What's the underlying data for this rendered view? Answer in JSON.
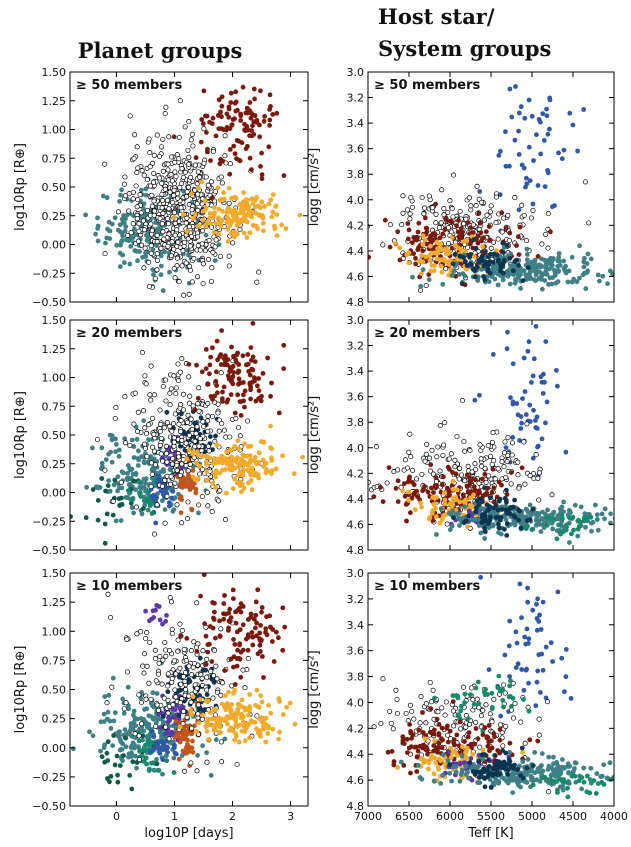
{
  "titles": {
    "left": "Planet groups",
    "right_line1": "Host star/",
    "right_line2": "System groups"
  },
  "colors": {
    "teal": "#3f7f86",
    "dark_teal": "#0e5a4a",
    "green": "#138a6a",
    "navy": "#0b3550",
    "purple": "#5b3aa6",
    "blue": "#2f58a8",
    "orange": "#c4541a",
    "yellow": "#f2aa2a",
    "maroon": "#7a1a0c",
    "hollow": "#ffffff"
  },
  "chart_data": [
    {
      "type": "scatter",
      "id": "rp-50",
      "column": "left",
      "panel_label": "≥ 50 members",
      "xlabel": "log10P [days]",
      "ylabel": "log10Rp [R⊕]",
      "xlim": [
        -0.8,
        3.3
      ],
      "ylim": [
        -0.5,
        1.5
      ],
      "xticks": [
        "0",
        "1",
        "2",
        "3"
      ],
      "yticks": [
        "−0.50",
        "−0.25",
        "0.00",
        "0.25",
        "0.50",
        "0.75",
        "1.00",
        "1.25",
        "1.50"
      ],
      "show_xticklabels": false,
      "groups": [
        {
          "name": "teal",
          "color": "teal",
          "n": 230,
          "cx": 0.6,
          "cy": 0.15,
          "sx": 0.45,
          "sy": 0.18
        },
        {
          "name": "unassigned",
          "color": "hollow",
          "n": 520,
          "cx": 1.1,
          "cy": 0.3,
          "sx": 0.45,
          "sy": 0.3
        },
        {
          "name": "maroon",
          "color": "maroon",
          "n": 110,
          "cx": 2.1,
          "cy": 1.0,
          "sx": 0.35,
          "sy": 0.2
        },
        {
          "name": "yellow",
          "color": "yellow",
          "n": 150,
          "cx": 2.1,
          "cy": 0.25,
          "sx": 0.4,
          "sy": 0.1
        }
      ]
    },
    {
      "type": "scatter",
      "id": "logg-50",
      "column": "right",
      "panel_label": "≥ 50 members",
      "xlabel": "Teff [K]",
      "ylabel": "logg [cm/s²]",
      "xlim": [
        7000,
        4000
      ],
      "ylim": [
        4.8,
        3.0
      ],
      "xticks": [
        "7000",
        "6500",
        "6000",
        "5500",
        "5000",
        "4500",
        "4000"
      ],
      "yticks": [
        "3.0",
        "3.2",
        "3.4",
        "3.6",
        "3.8",
        "4.0",
        "4.2",
        "4.4",
        "4.6",
        "4.8"
      ],
      "show_xticklabels": false,
      "groups": [
        {
          "name": "blue",
          "color": "blue",
          "n": 55,
          "cx": 5000,
          "cy": 3.6,
          "sx": 250,
          "sy": 0.3
        },
        {
          "name": "unassigned",
          "color": "hollow",
          "n": 230,
          "cx": 5800,
          "cy": 4.25,
          "sx": 450,
          "sy": 0.17
        },
        {
          "name": "maroon",
          "color": "maroon",
          "n": 140,
          "cx": 6000,
          "cy": 4.35,
          "sx": 400,
          "sy": 0.1
        },
        {
          "name": "yellow",
          "color": "yellow",
          "n": 80,
          "cx": 5950,
          "cy": 4.45,
          "sx": 280,
          "sy": 0.08
        },
        {
          "name": "teal",
          "color": "teal",
          "n": 220,
          "cx": 5000,
          "cy": 4.55,
          "sx": 500,
          "sy": 0.06
        },
        {
          "name": "navy",
          "color": "navy",
          "n": 60,
          "cx": 5500,
          "cy": 4.5,
          "sx": 200,
          "sy": 0.07
        }
      ]
    },
    {
      "type": "scatter",
      "id": "rp-20",
      "column": "left",
      "panel_label": "≥ 20 members",
      "xlabel": "log10P [days]",
      "ylabel": "log10Rp [R⊕]",
      "xlim": [
        -0.8,
        3.3
      ],
      "ylim": [
        -0.5,
        1.5
      ],
      "xticks": [
        "0",
        "1",
        "2",
        "3"
      ],
      "yticks": [
        "−0.50",
        "−0.25",
        "0.00",
        "0.25",
        "0.50",
        "0.75",
        "1.00",
        "1.25",
        "1.50"
      ],
      "show_xticklabels": false,
      "groups": [
        {
          "name": "teal",
          "color": "teal",
          "n": 220,
          "cx": 0.55,
          "cy": 0.15,
          "sx": 0.45,
          "sy": 0.18
        },
        {
          "name": "dark_teal",
          "color": "dark_teal",
          "n": 25,
          "cx": 0.0,
          "cy": -0.1,
          "sx": 0.3,
          "sy": 0.15
        },
        {
          "name": "green",
          "color": "green",
          "n": 20,
          "cx": 0.55,
          "cy": -0.05,
          "sx": 0.15,
          "sy": 0.08
        },
        {
          "name": "blue",
          "color": "blue",
          "n": 30,
          "cx": 0.8,
          "cy": 0.0,
          "sx": 0.12,
          "sy": 0.08
        },
        {
          "name": "purple",
          "color": "purple",
          "n": 40,
          "cx": 1.0,
          "cy": 0.32,
          "sx": 0.1,
          "sy": 0.08
        },
        {
          "name": "orange",
          "color": "orange",
          "n": 50,
          "cx": 1.2,
          "cy": 0.12,
          "sx": 0.1,
          "sy": 0.12
        },
        {
          "name": "navy",
          "color": "navy",
          "n": 60,
          "cx": 1.3,
          "cy": 0.5,
          "sx": 0.2,
          "sy": 0.1
        },
        {
          "name": "unassigned",
          "color": "hollow",
          "n": 280,
          "cx": 1.1,
          "cy": 0.45,
          "sx": 0.5,
          "sy": 0.3
        },
        {
          "name": "maroon",
          "color": "maroon",
          "n": 110,
          "cx": 2.1,
          "cy": 1.0,
          "sx": 0.35,
          "sy": 0.2
        },
        {
          "name": "yellow",
          "color": "yellow",
          "n": 140,
          "cx": 2.1,
          "cy": 0.25,
          "sx": 0.4,
          "sy": 0.1
        }
      ]
    },
    {
      "type": "scatter",
      "id": "logg-20",
      "column": "right",
      "panel_label": "≥ 20 members",
      "xlabel": "Teff [K]",
      "ylabel": "logg [cm/s²]",
      "xlim": [
        7000,
        4000
      ],
      "ylim": [
        4.8,
        3.0
      ],
      "xticks": [
        "7000",
        "6500",
        "6000",
        "5500",
        "5000",
        "4500",
        "4000"
      ],
      "yticks": [
        "3.0",
        "3.2",
        "3.4",
        "3.6",
        "3.8",
        "4.0",
        "4.2",
        "4.4",
        "4.6",
        "4.8"
      ],
      "show_xticklabels": false,
      "groups": [
        {
          "name": "blue",
          "color": "blue",
          "n": 55,
          "cx": 5000,
          "cy": 3.6,
          "sx": 250,
          "sy": 0.3
        },
        {
          "name": "unassigned",
          "color": "hollow",
          "n": 200,
          "cx": 5800,
          "cy": 4.2,
          "sx": 450,
          "sy": 0.17
        },
        {
          "name": "maroon",
          "color": "maroon",
          "n": 130,
          "cx": 6000,
          "cy": 4.35,
          "sx": 400,
          "sy": 0.1
        },
        {
          "name": "yellow",
          "color": "yellow",
          "n": 60,
          "cx": 6000,
          "cy": 4.45,
          "sx": 250,
          "sy": 0.07
        },
        {
          "name": "purple",
          "color": "purple",
          "n": 20,
          "cx": 5700,
          "cy": 4.55,
          "sx": 120,
          "sy": 0.04
        },
        {
          "name": "teal",
          "color": "teal",
          "n": 220,
          "cx": 5000,
          "cy": 4.55,
          "sx": 500,
          "sy": 0.06
        },
        {
          "name": "navy",
          "color": "navy",
          "n": 70,
          "cx": 5400,
          "cy": 4.5,
          "sx": 200,
          "sy": 0.07
        },
        {
          "name": "green",
          "color": "green",
          "n": 30,
          "cx": 4600,
          "cy": 4.6,
          "sx": 300,
          "sy": 0.05
        }
      ]
    },
    {
      "type": "scatter",
      "id": "rp-10",
      "column": "left",
      "panel_label": "≥ 10 members",
      "xlabel": "log10P [days]",
      "ylabel": "log10Rp [R⊕]",
      "xlim": [
        -0.8,
        3.3
      ],
      "ylim": [
        -0.5,
        1.5
      ],
      "xticks": [
        "0",
        "1",
        "2",
        "3"
      ],
      "yticks": [
        "−0.50",
        "−0.25",
        "0.00",
        "0.25",
        "0.50",
        "0.75",
        "1.00",
        "1.25",
        "1.50"
      ],
      "show_xticklabels": true,
      "groups": [
        {
          "name": "teal",
          "color": "teal",
          "n": 220,
          "cx": 0.55,
          "cy": 0.15,
          "sx": 0.45,
          "sy": 0.18
        },
        {
          "name": "dark_teal",
          "color": "dark_teal",
          "n": 25,
          "cx": 0.0,
          "cy": -0.1,
          "sx": 0.3,
          "sy": 0.15
        },
        {
          "name": "green",
          "color": "green",
          "n": 30,
          "cx": 0.55,
          "cy": 0.0,
          "sx": 0.15,
          "sy": 0.1
        },
        {
          "name": "purple_top",
          "color": "purple",
          "n": 12,
          "cx": 0.7,
          "cy": 1.15,
          "sx": 0.12,
          "sy": 0.06
        },
        {
          "name": "blue",
          "color": "blue",
          "n": 30,
          "cx": 0.8,
          "cy": 0.0,
          "sx": 0.12,
          "sy": 0.08
        },
        {
          "name": "purple",
          "color": "purple",
          "n": 45,
          "cx": 1.0,
          "cy": 0.3,
          "sx": 0.12,
          "sy": 0.1
        },
        {
          "name": "orange",
          "color": "orange",
          "n": 50,
          "cx": 1.2,
          "cy": 0.12,
          "sx": 0.1,
          "sy": 0.12
        },
        {
          "name": "navy",
          "color": "navy",
          "n": 70,
          "cx": 1.3,
          "cy": 0.5,
          "sx": 0.2,
          "sy": 0.1
        },
        {
          "name": "unassigned",
          "color": "hollow",
          "n": 200,
          "cx": 1.1,
          "cy": 0.55,
          "sx": 0.5,
          "sy": 0.3
        },
        {
          "name": "maroon",
          "color": "maroon",
          "n": 110,
          "cx": 2.1,
          "cy": 1.0,
          "sx": 0.35,
          "sy": 0.2
        },
        {
          "name": "yellow",
          "color": "yellow",
          "n": 140,
          "cx": 2.1,
          "cy": 0.25,
          "sx": 0.4,
          "sy": 0.1
        }
      ]
    },
    {
      "type": "scatter",
      "id": "logg-10",
      "column": "right",
      "panel_label": "≥ 10 members",
      "xlabel": "Teff [K]",
      "ylabel": "logg [cm/s²]",
      "xlim": [
        7000,
        4000
      ],
      "ylim": [
        4.8,
        3.0
      ],
      "xticks": [
        "7000",
        "6500",
        "6000",
        "5500",
        "5000",
        "4500",
        "4000"
      ],
      "yticks": [
        "3.0",
        "3.2",
        "3.4",
        "3.6",
        "3.8",
        "4.0",
        "4.2",
        "4.4",
        "4.6",
        "4.8"
      ],
      "show_xticklabels": true,
      "groups": [
        {
          "name": "blue",
          "color": "blue",
          "n": 55,
          "cx": 5000,
          "cy": 3.6,
          "sx": 250,
          "sy": 0.3
        },
        {
          "name": "unassigned",
          "color": "hollow",
          "n": 140,
          "cx": 5800,
          "cy": 4.15,
          "sx": 450,
          "sy": 0.15
        },
        {
          "name": "green",
          "color": "green",
          "n": 40,
          "cx": 5600,
          "cy": 4.0,
          "sx": 300,
          "sy": 0.08
        },
        {
          "name": "maroon",
          "color": "maroon",
          "n": 130,
          "cx": 6000,
          "cy": 4.35,
          "sx": 400,
          "sy": 0.1
        },
        {
          "name": "yellow",
          "color": "yellow",
          "n": 60,
          "cx": 6000,
          "cy": 4.45,
          "sx": 250,
          "sy": 0.07
        },
        {
          "name": "purple",
          "color": "purple",
          "n": 25,
          "cx": 5800,
          "cy": 4.5,
          "sx": 150,
          "sy": 0.05
        },
        {
          "name": "teal",
          "color": "teal",
          "n": 220,
          "cx": 5000,
          "cy": 4.55,
          "sx": 500,
          "sy": 0.06
        },
        {
          "name": "navy",
          "color": "navy",
          "n": 70,
          "cx": 5400,
          "cy": 4.5,
          "sx": 200,
          "sy": 0.07
        },
        {
          "name": "green_tail",
          "color": "green",
          "n": 30,
          "cx": 4500,
          "cy": 4.65,
          "sx": 300,
          "sy": 0.05
        }
      ]
    }
  ]
}
